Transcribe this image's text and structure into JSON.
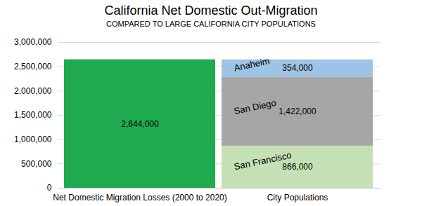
{
  "chart_data": {
    "type": "bar",
    "title": "California Net Domestic Out-Migration",
    "subtitle": "COMPARED TO LARGE CALIFORNIA CITY POPULATIONS",
    "categories": [
      "Net Domestic Migration Losses (2000 to 2020)",
      "City Populations"
    ],
    "stacked": true,
    "data_labels": true,
    "grid": true,
    "ylim": [
      0,
      3000000
    ],
    "yticks": [
      0,
      {
        "value": 500000,
        "label": "500,000"
      },
      {
        "value": 1000000,
        "label": "1,000,000"
      },
      {
        "value": 1500000,
        "label": "1,500,000"
      },
      {
        "value": 2000000,
        "label": "2,000,000"
      },
      {
        "value": 2500000,
        "label": "2,500,000"
      },
      {
        "value": 3000000,
        "label": "3,000,000"
      }
    ],
    "series": [
      {
        "color": "#1faa4f",
        "values": [
          2644000,
          null
        ],
        "value_labels": [
          "2,644,000",
          null
        ]
      },
      {
        "name": "San Francisco",
        "color": "#c5e0b4",
        "values": [
          null,
          866000
        ],
        "value_labels": [
          null,
          "866,000"
        ]
      },
      {
        "name": "San Diego",
        "color": "#a6a6a6",
        "values": [
          null,
          1422000
        ],
        "value_labels": [
          null,
          "1,422,000"
        ]
      },
      {
        "name": "Anaheim",
        "color": "#9dc3e6",
        "values": [
          null,
          354000
        ],
        "value_labels": [
          null,
          "354,000"
        ]
      }
    ]
  }
}
